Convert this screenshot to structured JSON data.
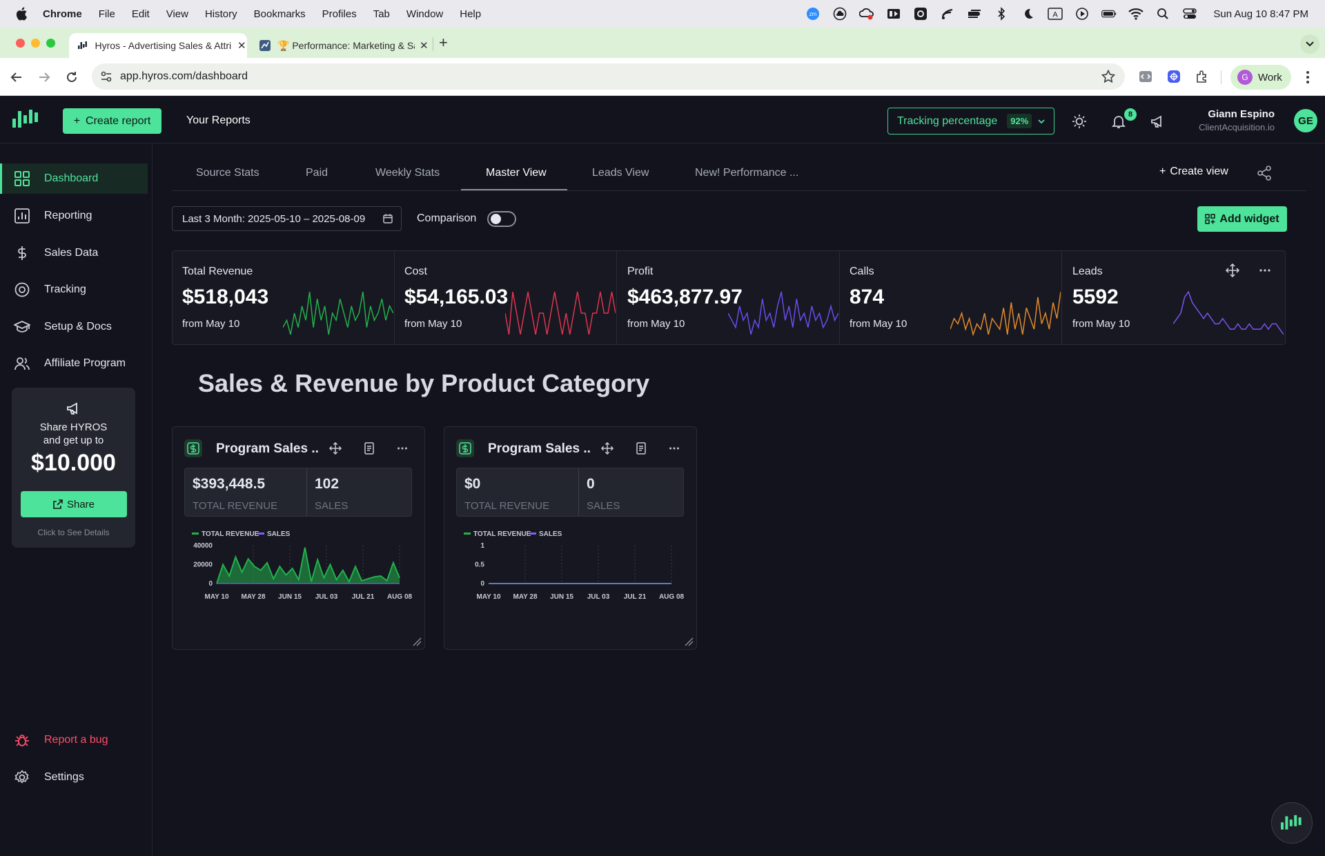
{
  "menubar": {
    "app": "Chrome",
    "items": [
      "File",
      "Edit",
      "View",
      "History",
      "Bookmarks",
      "Profiles",
      "Tab",
      "Window",
      "Help"
    ],
    "status_icons": [
      "zoom-icon",
      "cloud-icon",
      "creative-cloud-icon",
      "screen-record-icon",
      "settings-gear-icon",
      "feed-icon",
      "toggle-icon",
      "bluetooth-icon",
      "moon-icon",
      "input-source-icon",
      "play-icon",
      "battery-icon",
      "wifi-icon",
      "search-icon",
      "control-center-icon"
    ],
    "input_source": "A",
    "clock": "Sun Aug 10  8:47 PM"
  },
  "browser": {
    "tabs": [
      {
        "label": "Hyros - Advertising Sales & Attribution",
        "active": true
      },
      {
        "label": "🏆 Performance: Marketing & Sales",
        "active": false
      }
    ],
    "url": "app.hyros.com/dashboard",
    "profile": {
      "initial": "G",
      "label": "Work"
    }
  },
  "header": {
    "create_report": "Create report",
    "your_reports": "Your Reports",
    "tracking_label": "Tracking percentage",
    "tracking_value": "92%",
    "notification_count": "8",
    "user_name": "Giann Espino",
    "user_org": "ClientAcquisition.io",
    "avatar_initials": "GE"
  },
  "sidebar": {
    "items": [
      {
        "label": "Dashboard",
        "icon": "grid-icon",
        "active": true
      },
      {
        "label": "Reporting",
        "icon": "bar-chart-icon"
      },
      {
        "label": "Sales Data",
        "icon": "dollar-icon"
      },
      {
        "label": "Tracking",
        "icon": "target-icon"
      },
      {
        "label": "Setup & Docs",
        "icon": "graduation-cap-icon"
      },
      {
        "label": "Affiliate Program",
        "icon": "users-icon"
      }
    ],
    "promo": {
      "line1": "Share HYROS",
      "line2": "and get up to",
      "amount": "$10.000",
      "button": "Share",
      "sub": "Click to See Details"
    },
    "report_bug": "Report a bug",
    "settings": "Settings"
  },
  "views": {
    "tabs": [
      "Source Stats",
      "Paid",
      "Weekly Stats",
      "Master View",
      "Leads View",
      "New! Performance ..."
    ],
    "active": "Master View",
    "create_view": "Create view"
  },
  "filters": {
    "date_range": "Last 3 Month: 2025-05-10 – 2025-08-09",
    "comparison_label": "Comparison",
    "comparison_on": false,
    "add_widget": "Add widget"
  },
  "stats": [
    {
      "label": "Total Revenue",
      "value": "$518,043",
      "from": "from May 10",
      "color": "#22b14c",
      "spark": [
        4,
        5,
        3,
        6,
        4,
        7,
        5,
        9,
        4,
        8,
        5,
        7,
        3,
        6,
        5,
        8,
        6,
        4,
        7,
        5,
        6,
        9,
        4,
        7,
        5,
        6,
        8,
        5,
        7,
        6
      ]
    },
    {
      "label": "Cost",
      "value": "$54,165.03",
      "from": "from May 10",
      "color": "#e0344f",
      "spark": [
        2,
        1,
        3,
        2,
        1,
        2,
        3,
        2,
        1,
        2,
        2,
        1,
        2,
        3,
        2,
        1,
        2,
        1,
        2,
        3,
        2,
        2,
        1,
        2,
        2,
        3,
        2,
        2,
        3,
        2
      ]
    },
    {
      "label": "Profit",
      "value": "$463,877.97",
      "from": "from May 10",
      "color": "#6a4cf0",
      "spark": [
        6,
        5,
        4,
        7,
        5,
        6,
        3,
        5,
        4,
        8,
        5,
        6,
        4,
        7,
        9,
        5,
        7,
        4,
        8,
        5,
        6,
        4,
        7,
        5,
        6,
        4,
        5,
        7,
        5,
        6
      ]
    },
    {
      "label": "Calls",
      "value": "874",
      "from": "from May 10",
      "color": "#e38a2b",
      "spark": [
        3,
        5,
        4,
        6,
        3,
        5,
        2,
        4,
        3,
        6,
        2,
        5,
        4,
        3,
        7,
        2,
        8,
        3,
        6,
        2,
        7,
        5,
        3,
        9,
        4,
        6,
        3,
        8,
        5,
        10
      ]
    },
    {
      "label": "Leads",
      "value": "5592",
      "from": "from May 10",
      "color": "#7b55f2",
      "spark": [
        3,
        4,
        5,
        8,
        9,
        7,
        6,
        5,
        4,
        5,
        4,
        3,
        3,
        4,
        3,
        2,
        2,
        3,
        2,
        2,
        3,
        2,
        2,
        2,
        3,
        2,
        3,
        3,
        2,
        1
      ]
    }
  ],
  "section_title": "Sales & Revenue by Product Category",
  "widgets": [
    {
      "title": "Program Sales ...",
      "metrics": [
        {
          "value": "$393,448.5",
          "label": "TOTAL REVENUE"
        },
        {
          "value": "102",
          "label": "SALES"
        }
      ],
      "chart_data": {
        "type": "area",
        "legend": [
          "TOTAL REVENUE",
          "SALES"
        ],
        "series_colors": [
          "#22b14c",
          "#8a5cf6"
        ],
        "x_ticks": [
          "MAY 10",
          "MAY 28",
          "JUN 15",
          "JUL 03",
          "JUL 21",
          "AUG 08"
        ],
        "y_ticks": [
          "40000",
          "20000",
          "0"
        ],
        "ylim": [
          0,
          40000
        ],
        "revenue": [
          0,
          20000,
          8000,
          28000,
          12000,
          26000,
          18000,
          14000,
          22000,
          5000,
          18000,
          9000,
          16000,
          4000,
          38000,
          2000,
          25000,
          6000,
          20000,
          4000,
          14000,
          2000,
          18000,
          3000,
          5000,
          7000,
          8000,
          3000,
          22000,
          6000
        ],
        "sales": [
          0,
          0,
          0,
          0,
          0,
          0,
          0,
          0,
          0,
          0,
          0,
          0,
          0,
          0,
          0,
          0,
          0,
          0,
          0,
          0,
          0,
          0,
          0,
          0,
          0,
          0,
          0,
          0,
          0,
          0
        ]
      }
    },
    {
      "title": "Program Sales ...",
      "metrics": [
        {
          "value": "$0",
          "label": "TOTAL REVENUE"
        },
        {
          "value": "0",
          "label": "SALES"
        }
      ],
      "chart_data": {
        "type": "area",
        "legend": [
          "TOTAL REVENUE",
          "SALES"
        ],
        "series_colors": [
          "#22b14c",
          "#8a5cf6"
        ],
        "x_ticks": [
          "MAY 10",
          "MAY 28",
          "JUN 15",
          "JUL 03",
          "JUL 21",
          "AUG 08"
        ],
        "y_ticks": [
          "1",
          "0.5",
          "0"
        ],
        "ylim": [
          0,
          1
        ],
        "revenue": [
          0,
          0,
          0,
          0,
          0,
          0,
          0,
          0,
          0,
          0,
          0,
          0,
          0,
          0,
          0,
          0,
          0,
          0,
          0,
          0,
          0,
          0,
          0,
          0,
          0,
          0,
          0,
          0,
          0,
          0
        ],
        "sales": [
          0,
          0,
          0,
          0,
          0,
          0,
          0,
          0,
          0,
          0,
          0,
          0,
          0,
          0,
          0,
          0,
          0,
          0,
          0,
          0,
          0,
          0,
          0,
          0,
          0,
          0,
          0,
          0,
          0,
          0
        ]
      }
    }
  ]
}
